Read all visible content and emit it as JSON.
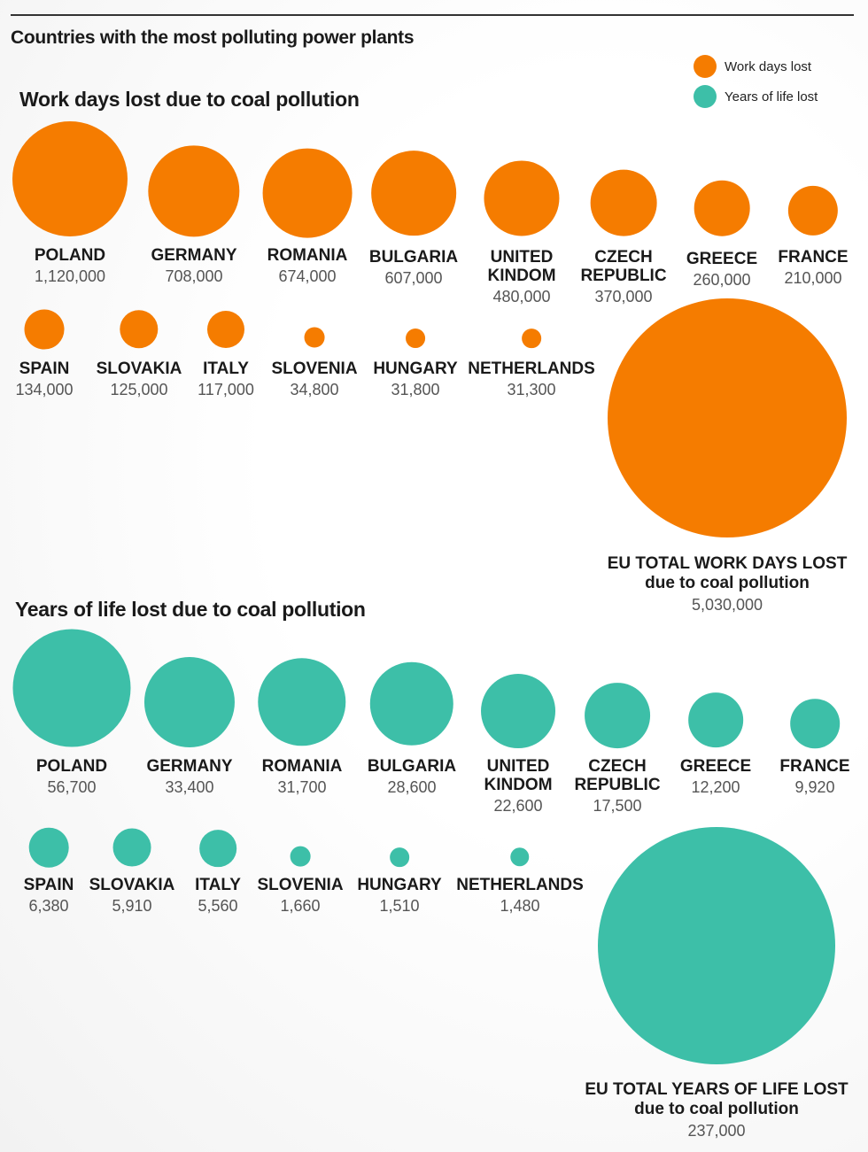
{
  "title": "Countries with the most polluting power plants",
  "legend": [
    {
      "label": "Work days lost",
      "color": "#f57c00"
    },
    {
      "label": "Years of life lost",
      "color": "#3dbfa8"
    }
  ],
  "chart_data": [
    {
      "type": "bubble",
      "title": "Work days lost due to coal pollution",
      "color": "#f57c00",
      "categories": [
        "POLAND",
        "GERMANY",
        "ROMANIA",
        "BULGARIA",
        "UNITED KINDOM",
        "CZECH REPUBLIC",
        "GREECE",
        "FRANCE",
        "SPAIN",
        "SLOVAKIA",
        "ITALY",
        "SLOVENIA",
        "HUNGARY",
        "NETHERLANDS"
      ],
      "values": [
        1120000,
        708000,
        674000,
        607000,
        480000,
        370000,
        260000,
        210000,
        134000,
        125000,
        117000,
        34800,
        31800,
        31300
      ],
      "value_labels": [
        "1,120,000",
        "708,000",
        "674,000",
        "607,000",
        "480,000",
        "370,000",
        "260,000",
        "210,000",
        "134,000",
        "125,000",
        "117,000",
        "34,800",
        "31,800",
        "31,300"
      ],
      "total": {
        "label": "EU TOTAL WORK DAYS LOST",
        "sublabel": "due to coal pollution",
        "value": 5030000,
        "value_label": "5,030,000"
      }
    },
    {
      "type": "bubble",
      "title": "Years of life lost due to coal pollution",
      "color": "#3dbfa8",
      "categories": [
        "POLAND",
        "GERMANY",
        "ROMANIA",
        "BULGARIA",
        "UNITED KINDOM",
        "CZECH REPUBLIC",
        "GREECE",
        "FRANCE",
        "SPAIN",
        "SLOVAKIA",
        "ITALY",
        "SLOVENIA",
        "HUNGARY",
        "NETHERLANDS"
      ],
      "values": [
        56700,
        33400,
        31700,
        28600,
        22600,
        17500,
        12200,
        9920,
        6380,
        5910,
        5560,
        1660,
        1510,
        1480
      ],
      "value_labels": [
        "56,700",
        "33,400",
        "31,700",
        "28,600",
        "22,600",
        "17,500",
        "12,200",
        "9,920",
        "6,380",
        "5,910",
        "5,560",
        "1,660",
        "1,510",
        "1,480"
      ],
      "total": {
        "label": "EU TOTAL YEARS OF LIFE LOST",
        "sublabel": "due to coal pollution",
        "value": 237000,
        "value_label": "237,000"
      }
    }
  ]
}
